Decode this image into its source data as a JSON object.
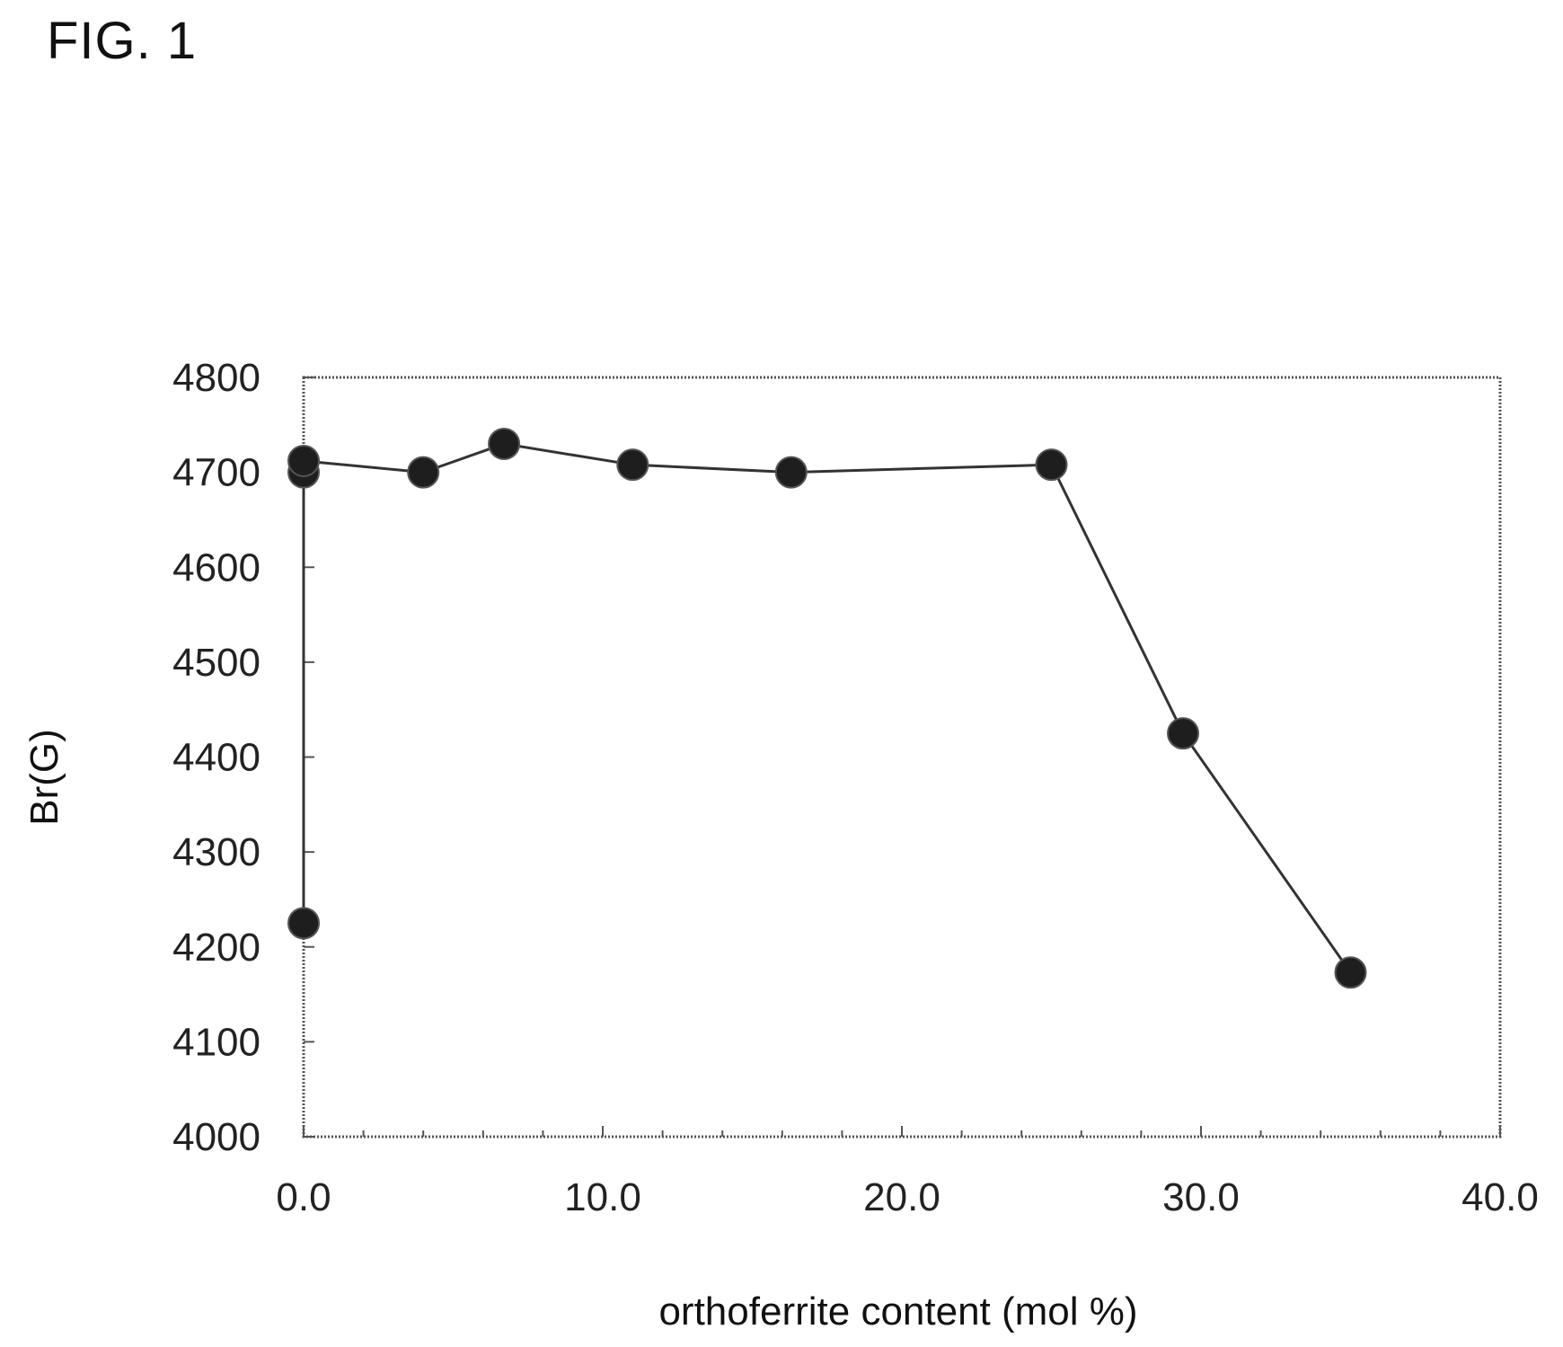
{
  "figure": {
    "label": "FIG. 1"
  },
  "chart_data": {
    "type": "line",
    "title": "",
    "xlabel": "orthoferrite content (mol %)",
    "ylabel": "Br(G)",
    "xlim": [
      0,
      40
    ],
    "ylim": [
      4000,
      4800
    ],
    "x_ticks": [
      "0.0",
      "10.0",
      "20.0",
      "30.0",
      "40.0"
    ],
    "y_ticks": [
      "4000",
      "4100",
      "4200",
      "4300",
      "4400",
      "4500",
      "4600",
      "4700",
      "4800"
    ],
    "grid": false,
    "series": [
      {
        "points": [
          {
            "x": 0.0,
            "y": 4225
          },
          {
            "x": 0.0,
            "y": 4700
          },
          {
            "x": 0.0,
            "y": 4712
          },
          {
            "x": 4.0,
            "y": 4700
          },
          {
            "x": 6.7,
            "y": 4730
          },
          {
            "x": 11.0,
            "y": 4708
          },
          {
            "x": 16.3,
            "y": 4700
          },
          {
            "x": 25.0,
            "y": 4708
          },
          {
            "x": 29.4,
            "y": 4425
          },
          {
            "x": 35.0,
            "y": 4173
          }
        ]
      }
    ],
    "colors": {
      "line": "#333333",
      "marker": "#1e1e1e",
      "frame": "#555555"
    }
  }
}
